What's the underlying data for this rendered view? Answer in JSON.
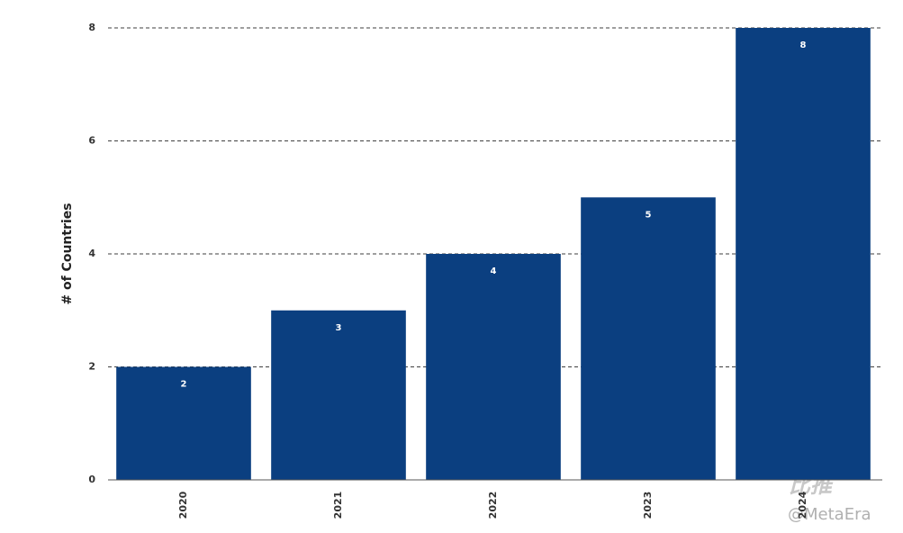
{
  "chart_data": {
    "type": "bar",
    "y_label": "# of Countries",
    "categories": [
      "2020",
      "2021",
      "2022",
      "2023",
      "2024"
    ],
    "values": [
      2,
      3,
      4,
      5,
      8
    ],
    "color": "#0b3f80",
    "ylim": [
      0,
      8
    ],
    "yticks": [
      0,
      2,
      4,
      6,
      8
    ],
    "grid": true,
    "watermark": [
      "比推",
      "@MetaEra"
    ]
  }
}
